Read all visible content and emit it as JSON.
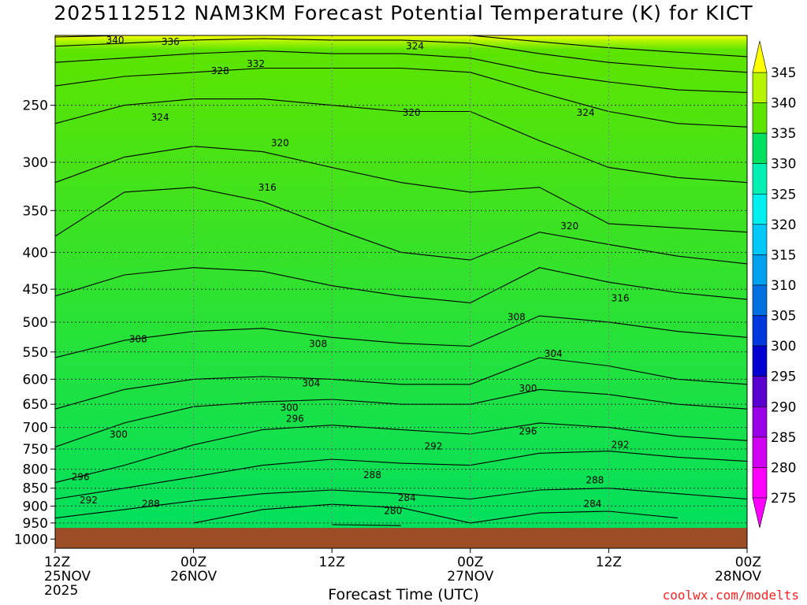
{
  "title": "2025112512 NAM3KM Forecast Potential Temperature (K) for KICT",
  "xlabel": "Forecast Time (UTC)",
  "credit": "coolwx.com/modelts",
  "colors": {
    "ground": "#9b4d25",
    "contour_line": "#000000",
    "grid": "#7f7f7f",
    "credit": "#ff2020"
  },
  "colorbar": {
    "levels": [
      "345",
      "340",
      "335",
      "330",
      "325",
      "320",
      "315",
      "310",
      "305",
      "300",
      "295",
      "290",
      "285",
      "280",
      "275"
    ],
    "colors": [
      "#ffff00",
      "#b5f500",
      "#5de400",
      "#00e060",
      "#00f0b4",
      "#00f0f0",
      "#00c8f8",
      "#00a0f0",
      "#0070e0",
      "#0038e0",
      "#0000d0",
      "#5800d0",
      "#9a00e8",
      "#d000f0",
      "#ff00ff"
    ]
  },
  "chart_data": {
    "type": "heatmap",
    "title": "2025112512 NAM3KM Forecast Potential Temperature (K) for KICT",
    "xlabel": "Forecast Time (UTC)",
    "ylabel": "",
    "x_ticks": [
      {
        "hour": 0,
        "line1": "12Z",
        "line2": "25NOV",
        "line3": "2025"
      },
      {
        "hour": 12,
        "line1": "00Z",
        "line2": "26NOV",
        "line3": ""
      },
      {
        "hour": 24,
        "line1": "12Z",
        "line2": "",
        "line3": ""
      },
      {
        "hour": 36,
        "line1": "00Z",
        "line2": "27NOV",
        "line3": ""
      },
      {
        "hour": 48,
        "line1": "12Z",
        "line2": "",
        "line3": ""
      },
      {
        "hour": 60,
        "line1": "00Z",
        "line2": "28NOV",
        "line3": ""
      }
    ],
    "xlim_hours": [
      0,
      60
    ],
    "y_ticks_hpa": [
      250,
      300,
      350,
      400,
      450,
      500,
      550,
      600,
      650,
      700,
      750,
      800,
      850,
      900,
      950,
      1000
    ],
    "ylim_hpa": [
      1030,
      200
    ],
    "y_scale": "log-pressure",
    "grid": true,
    "contour_interval_k": 4,
    "ground_top_hpa": 965,
    "contour_hours": [
      0,
      6,
      12,
      18,
      24,
      30,
      36,
      42,
      48,
      54,
      60
    ],
    "isentropes": [
      {
        "k": 280,
        "p": [
          null,
          null,
          null,
          null,
          955,
          958,
          null,
          null,
          null,
          null,
          null
        ]
      },
      {
        "k": 284,
        "p": [
          null,
          null,
          950,
          910,
          895,
          905,
          950,
          920,
          915,
          935,
          null
        ]
      },
      {
        "k": 288,
        "p": [
          935,
          910,
          885,
          865,
          855,
          865,
          880,
          855,
          850,
          865,
          880
        ]
      },
      {
        "k": 292,
        "p": [
          880,
          850,
          820,
          790,
          775,
          785,
          790,
          760,
          755,
          770,
          780
        ]
      },
      {
        "k": 296,
        "p": [
          835,
          790,
          740,
          705,
          695,
          705,
          715,
          690,
          700,
          720,
          730
        ]
      },
      {
        "k": 300,
        "p": [
          745,
          690,
          655,
          645,
          640,
          650,
          650,
          620,
          630,
          650,
          660
        ]
      },
      {
        "k": 304,
        "p": [
          660,
          620,
          600,
          595,
          600,
          610,
          610,
          560,
          575,
          600,
          610
        ]
      },
      {
        "k": 308,
        "p": [
          560,
          530,
          515,
          510,
          525,
          535,
          540,
          490,
          500,
          515,
          525
        ]
      },
      {
        "k": 312,
        "p": [
          460,
          430,
          420,
          425,
          445,
          460,
          470,
          420,
          440,
          455,
          465
        ]
      },
      {
        "k": 316,
        "p": [
          380,
          330,
          325,
          340,
          370,
          400,
          410,
          375,
          390,
          405,
          415
        ]
      },
      {
        "k": 320,
        "p": [
          320,
          295,
          285,
          290,
          305,
          320,
          330,
          325,
          365,
          370,
          375
        ]
      },
      {
        "k": 324,
        "p": [
          265,
          250,
          245,
          245,
          250,
          255,
          255,
          280,
          305,
          315,
          320
        ]
      },
      {
        "k": 328,
        "p": [
          235,
          228,
          225,
          222,
          222,
          222,
          225,
          240,
          255,
          265,
          268
        ]
      },
      {
        "k": 332,
        "p": [
          218,
          215,
          212,
          210,
          212,
          212,
          215,
          225,
          232,
          238,
          240
        ]
      },
      {
        "k": 336,
        "p": [
          207,
          205,
          203,
          202,
          203,
          203,
          205,
          212,
          218,
          222,
          225
        ]
      },
      {
        "k": 340,
        "p": [
          201,
          200,
          200,
          200,
          200,
          200,
          200,
          204,
          208,
          211,
          214
        ]
      }
    ],
    "contour_labels": [
      {
        "text": "340",
        "hour": 5.2,
        "hpa": 203
      },
      {
        "text": "336",
        "hour": 10.0,
        "hpa": 204
      },
      {
        "text": "332",
        "hour": 17.4,
        "hpa": 219
      },
      {
        "text": "328",
        "hour": 14.3,
        "hpa": 224
      },
      {
        "text": "324",
        "hour": 31.2,
        "hpa": 207
      },
      {
        "text": "324",
        "hour": 9.1,
        "hpa": 260
      },
      {
        "text": "320",
        "hour": 30.9,
        "hpa": 256
      },
      {
        "text": "324",
        "hour": 46.0,
        "hpa": 256
      },
      {
        "text": "320",
        "hour": 19.5,
        "hpa": 282
      },
      {
        "text": "316",
        "hour": 18.4,
        "hpa": 325
      },
      {
        "text": "320",
        "hour": 44.6,
        "hpa": 368
      },
      {
        "text": "316",
        "hour": 49.0,
        "hpa": 463
      },
      {
        "text": "308",
        "hour": 40.0,
        "hpa": 492
      },
      {
        "text": "308",
        "hour": 7.2,
        "hpa": 528
      },
      {
        "text": "308",
        "hour": 22.8,
        "hpa": 536
      },
      {
        "text": "304",
        "hour": 43.2,
        "hpa": 553
      },
      {
        "text": "304",
        "hour": 22.2,
        "hpa": 608
      },
      {
        "text": "300",
        "hour": 41.0,
        "hpa": 618
      },
      {
        "text": "300",
        "hour": 20.3,
        "hpa": 657
      },
      {
        "text": "296",
        "hour": 20.8,
        "hpa": 681
      },
      {
        "text": "296",
        "hour": 41.0,
        "hpa": 709
      },
      {
        "text": "300",
        "hour": 5.5,
        "hpa": 716
      },
      {
        "text": "292",
        "hour": 32.8,
        "hpa": 743
      },
      {
        "text": "292",
        "hour": 49.0,
        "hpa": 740
      },
      {
        "text": "288",
        "hour": 27.5,
        "hpa": 815
      },
      {
        "text": "296",
        "hour": 2.2,
        "hpa": 820
      },
      {
        "text": "288",
        "hour": 46.8,
        "hpa": 828
      },
      {
        "text": "284",
        "hour": 30.5,
        "hpa": 877
      },
      {
        "text": "292",
        "hour": 2.9,
        "hpa": 883
      },
      {
        "text": "288",
        "hour": 8.3,
        "hpa": 893
      },
      {
        "text": "284",
        "hour": 46.6,
        "hpa": 893
      },
      {
        "text": "280",
        "hour": 29.3,
        "hpa": 914
      }
    ]
  }
}
